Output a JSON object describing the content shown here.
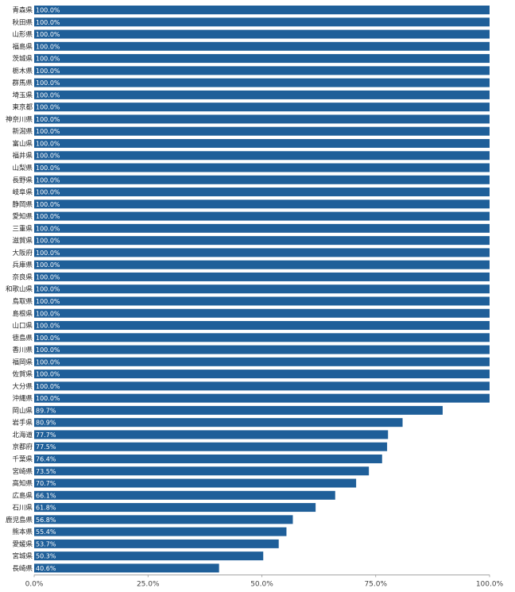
{
  "chart_data": {
    "type": "bar",
    "orientation": "horizontal",
    "categories": [
      "青森県",
      "秋田県",
      "山形県",
      "福島県",
      "茨城県",
      "栃木県",
      "群馬県",
      "埼玉県",
      "東京都",
      "神奈川県",
      "新潟県",
      "富山県",
      "福井県",
      "山梨県",
      "長野県",
      "岐阜県",
      "静岡県",
      "愛知県",
      "三重県",
      "滋賀県",
      "大阪府",
      "兵庫県",
      "奈良県",
      "和歌山県",
      "鳥取県",
      "島根県",
      "山口県",
      "徳島県",
      "香川県",
      "福岡県",
      "佐賀県",
      "大分県",
      "沖縄県",
      "岡山県",
      "岩手県",
      "北海道",
      "京都府",
      "千葉県",
      "宮崎県",
      "高知県",
      "広島県",
      "石川県",
      "鹿児島県",
      "熊本県",
      "愛媛県",
      "宮城県",
      "長崎県"
    ],
    "values": [
      100.0,
      100.0,
      100.0,
      100.0,
      100.0,
      100.0,
      100.0,
      100.0,
      100.0,
      100.0,
      100.0,
      100.0,
      100.0,
      100.0,
      100.0,
      100.0,
      100.0,
      100.0,
      100.0,
      100.0,
      100.0,
      100.0,
      100.0,
      100.0,
      100.0,
      100.0,
      100.0,
      100.0,
      100.0,
      100.0,
      100.0,
      100.0,
      100.0,
      89.7,
      80.9,
      77.7,
      77.5,
      76.4,
      73.5,
      70.7,
      66.1,
      61.8,
      56.8,
      55.4,
      53.7,
      50.3,
      40.6
    ],
    "value_labels": [
      "100.0%",
      "100.0%",
      "100.0%",
      "100.0%",
      "100.0%",
      "100.0%",
      "100.0%",
      "100.0%",
      "100.0%",
      "100.0%",
      "100.0%",
      "100.0%",
      "100.0%",
      "100.0%",
      "100.0%",
      "100.0%",
      "100.0%",
      "100.0%",
      "100.0%",
      "100.0%",
      "100.0%",
      "100.0%",
      "100.0%",
      "100.0%",
      "100.0%",
      "100.0%",
      "100.0%",
      "100.0%",
      "100.0%",
      "100.0%",
      "100.0%",
      "100.0%",
      "100.0%",
      "89.7%",
      "80.9%",
      "77.7%",
      "77.5%",
      "76.4%",
      "73.5%",
      "70.7%",
      "66.1%",
      "61.8%",
      "56.8%",
      "55.4%",
      "53.7%",
      "50.3%",
      "40.6%"
    ],
    "xlim": [
      0,
      100
    ],
    "x_ticks": [
      "0.0%",
      "25.0%",
      "50.0%",
      "75.0%",
      "100.0%"
    ],
    "x_tick_values": [
      0,
      25,
      50,
      75,
      100
    ],
    "title": "",
    "xlabel": "",
    "ylabel": "",
    "bar_color": "#1f5f99",
    "grid": false,
    "legend": false
  }
}
